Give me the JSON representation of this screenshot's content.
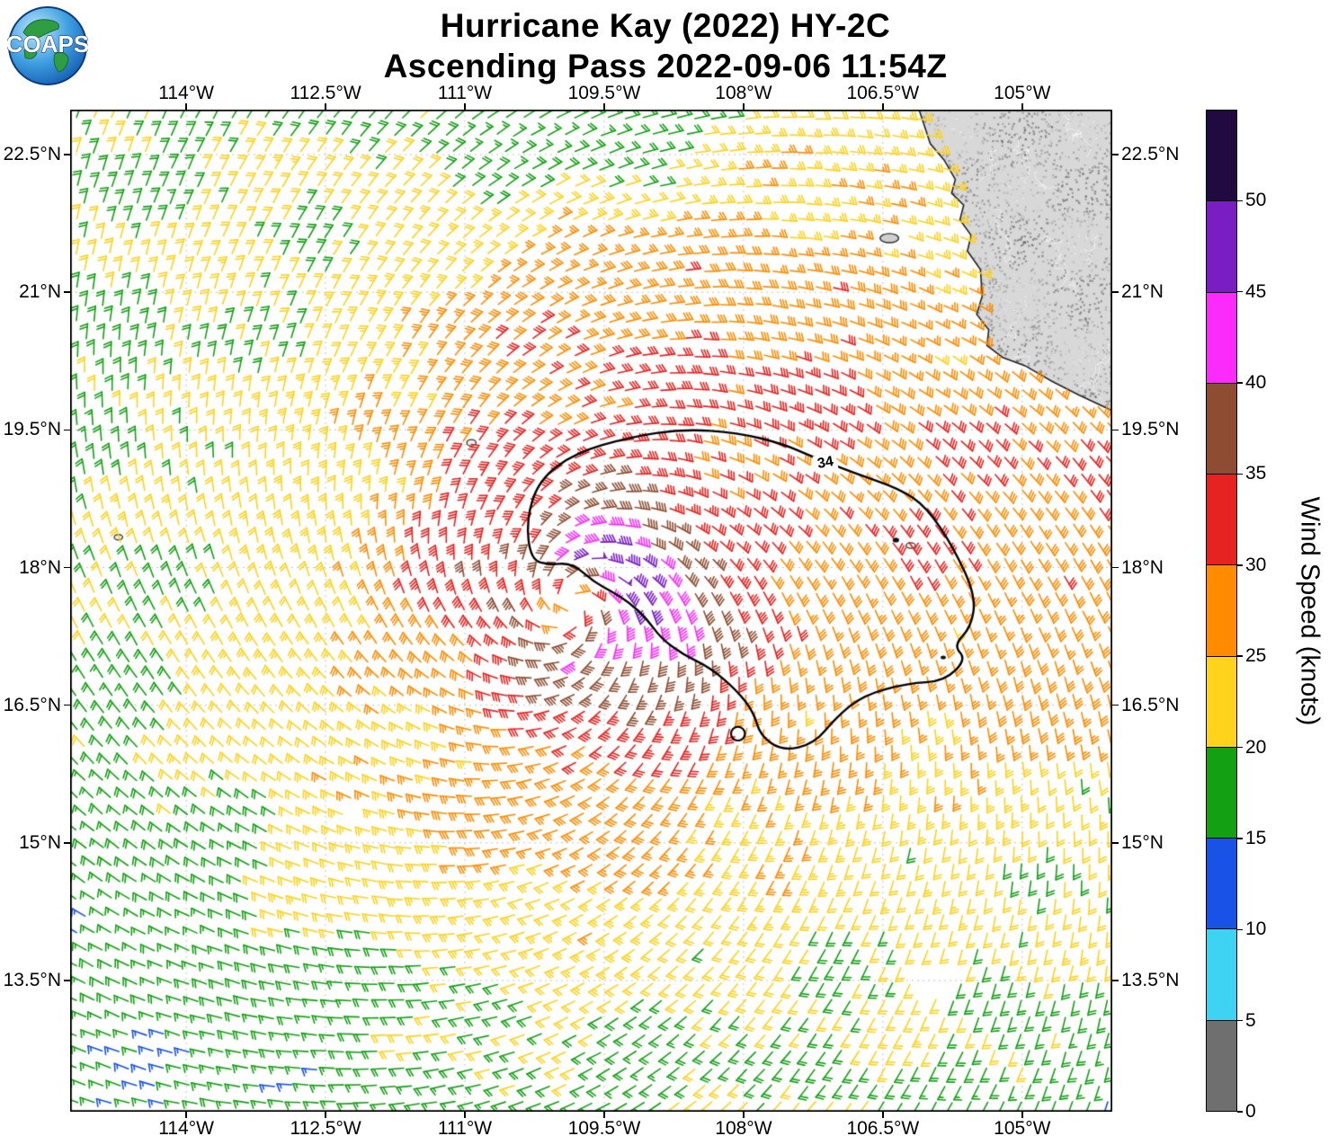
{
  "header": {
    "title_line1": "Hurricane Kay (2022) HY-2C",
    "title_line2": "Ascending Pass 2022-09-06 11:54Z",
    "logo_text": "COAPS"
  },
  "map": {
    "x_ticks": [
      "114°W",
      "112.5°W",
      "111°W",
      "109.5°W",
      "108°W",
      "106.5°W",
      "105°W"
    ],
    "x_tick_lons": [
      -114,
      -112.5,
      -111,
      -109.5,
      -108,
      -106.5,
      -105
    ],
    "y_ticks": [
      "22.5°N",
      "21°N",
      "19.5°N",
      "18°N",
      "16.5°N",
      "15°N",
      "13.5°N"
    ],
    "y_tick_lats": [
      22.5,
      21,
      19.5,
      18,
      16.5,
      15,
      13.5
    ],
    "lon_range": [
      -115.25,
      -104.03
    ],
    "lat_range": [
      12.07,
      22.99
    ],
    "contour_label": "34"
  },
  "colorbar": {
    "label": "Wind Speed (knots)",
    "ticks": [
      0,
      5,
      10,
      15,
      20,
      25,
      30,
      35,
      40,
      45,
      50
    ],
    "range": [
      0,
      55
    ],
    "colors": [
      "#6f6f6f",
      "#3ed3f2",
      "#1853e6",
      "#13a013",
      "#ffd21c",
      "#ff8c00",
      "#e62320",
      "#8e4d33",
      "#fb2bfb",
      "#7a1ec4",
      "#200a40"
    ]
  },
  "chart_data": {
    "type": "wind_barb_map",
    "title": "Hurricane Kay (2022) HY-2C Ascending Pass 2022-09-06 11:54Z",
    "units": "knots",
    "projection": {
      "lon_range": [
        -115.25,
        -104.03
      ],
      "lat_range": [
        12.07,
        22.99
      ]
    },
    "speed_bins": [
      0,
      5,
      10,
      15,
      20,
      25,
      30,
      35,
      40,
      45,
      50,
      55
    ],
    "storm": {
      "name": "Hurricane Kay",
      "center": {
        "lon": -109.85,
        "lat": 17.58
      },
      "rotation": "counterclockwise",
      "inflow_angle_deg": 25,
      "radial_profile_deg_kt": [
        [
          0,
          23
        ],
        [
          0.35,
          36
        ],
        [
          0.6,
          42
        ],
        [
          1.0,
          37.5
        ],
        [
          1.5,
          32
        ],
        [
          2.2,
          28
        ],
        [
          3.0,
          25.5
        ],
        [
          4.0,
          23
        ],
        [
          5.0,
          21.5
        ],
        [
          6.5,
          20.3
        ],
        [
          8.0,
          19.2
        ]
      ],
      "asymmetry": {
        "inner_amp_kt": 5.0,
        "inner_dir_deg": 15,
        "outer_gain_kt_per_deg": 1.5,
        "outer_cap_kt": 8.5,
        "outer_dir_deg": 35
      }
    },
    "barb_grid_spacing_deg": 0.185,
    "contour_34kt": [
      [
        -110.29,
        18.08
      ],
      [
        -110.34,
        18.52
      ],
      [
        -110.2,
        18.96
      ],
      [
        -109.81,
        19.25
      ],
      [
        -109.23,
        19.42
      ],
      [
        -108.65,
        19.51
      ],
      [
        -108.07,
        19.47
      ],
      [
        -107.58,
        19.35
      ],
      [
        -107.24,
        19.2
      ],
      [
        -106.81,
        19.03
      ],
      [
        -106.32,
        18.86
      ],
      [
        -106.03,
        18.66
      ],
      [
        -105.74,
        18.22
      ],
      [
        -105.5,
        17.69
      ],
      [
        -105.55,
        17.35
      ],
      [
        -105.74,
        17.15
      ],
      [
        -105.6,
        17.0
      ],
      [
        -105.84,
        16.76
      ],
      [
        -106.23,
        16.74
      ],
      [
        -106.71,
        16.61
      ],
      [
        -107.0,
        16.37
      ],
      [
        -107.24,
        16.08
      ],
      [
        -107.58,
        16.0
      ],
      [
        -107.82,
        16.17
      ],
      [
        -107.89,
        16.42
      ],
      [
        -108.07,
        16.66
      ],
      [
        -108.36,
        16.91
      ],
      [
        -108.65,
        17.05
      ],
      [
        -108.89,
        17.23
      ],
      [
        -109.04,
        17.44
      ],
      [
        -109.23,
        17.62
      ],
      [
        -109.42,
        17.74
      ],
      [
        -109.62,
        17.85
      ],
      [
        -109.76,
        17.98
      ],
      [
        -109.9,
        18.05
      ],
      [
        -110.08,
        18.03
      ]
    ],
    "contour_34kt_minor_loop": {
      "lon": -108.06,
      "lat": 16.19,
      "r": 0.075
    },
    "contour_label_pos": {
      "lon": -107.12,
      "lat": 19.14
    },
    "coastline": [
      [
        -106.11,
        22.99
      ],
      [
        -105.99,
        22.62
      ],
      [
        -105.84,
        22.44
      ],
      [
        -105.72,
        22.23
      ],
      [
        -105.76,
        22.08
      ],
      [
        -105.63,
        21.95
      ],
      [
        -105.67,
        21.79
      ],
      [
        -105.55,
        21.62
      ],
      [
        -105.59,
        21.45
      ],
      [
        -105.45,
        21.25
      ],
      [
        -105.43,
        20.96
      ],
      [
        -105.49,
        20.76
      ],
      [
        -105.36,
        20.59
      ],
      [
        -105.38,
        20.42
      ],
      [
        -105.21,
        20.29
      ],
      [
        -104.97,
        20.2
      ],
      [
        -104.68,
        20.03
      ],
      [
        -104.39,
        19.88
      ],
      [
        -104.03,
        19.71
      ]
    ],
    "islands": [
      {
        "lon": -110.93,
        "lat": 19.36,
        "rx": 0.05,
        "ry": 0.035,
        "type": "outline"
      },
      {
        "lon": -114.73,
        "lat": 18.33,
        "rx": 0.045,
        "ry": 0.03,
        "type": "outline"
      },
      {
        "lon": -106.36,
        "lat": 18.3,
        "rx": 0.035,
        "ry": 0.025,
        "type": "dot"
      },
      {
        "lon": -106.2,
        "lat": 18.24,
        "rx": 0.05,
        "ry": 0.03,
        "type": "outline"
      },
      {
        "lon": -105.85,
        "lat": 17.02,
        "rx": 0.028,
        "ry": 0.02,
        "type": "dot"
      },
      {
        "lon": -106.43,
        "lat": 21.59,
        "rx": 0.1,
        "ry": 0.05,
        "type": "land"
      }
    ],
    "data_gaps": [
      {
        "lon": -105.93,
        "lat": 13.62,
        "r": 0.22
      },
      {
        "lon": -112.16,
        "lat": 15.37,
        "r": 0.13
      }
    ]
  }
}
